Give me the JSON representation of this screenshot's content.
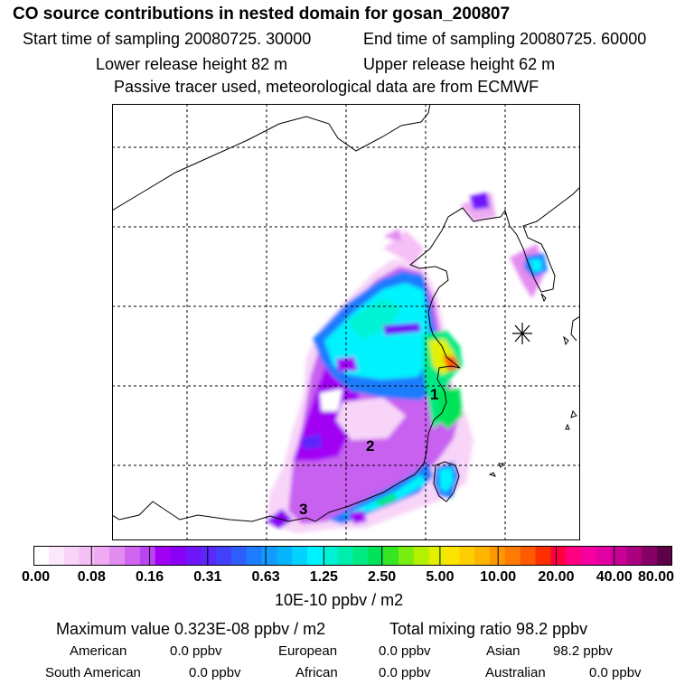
{
  "header": {
    "title": "CO  source contributions in nested domain for gosan_200807",
    "start_label": "Start time of sampling 20080725. 30000",
    "end_label": "End time of sampling 20080725. 60000",
    "lower_label": "Lower release height   82 m",
    "upper_label": "Upper release height   62 m",
    "info_line": "Passive tracer used, meteorological data are from ECMWF"
  },
  "map": {
    "markers": [
      {
        "label": "1"
      },
      {
        "label": "2"
      },
      {
        "label": "3"
      }
    ],
    "receptor_symbol": "asterisk-receptor-icon",
    "gridlines": "dashed",
    "coastline_color": "#000000"
  },
  "colorbar": {
    "ticks": [
      "0.00",
      "0.08",
      "0.16",
      "0.31",
      "0.63",
      "1.25",
      "2.50",
      "5.00",
      "10.00",
      "20.00",
      "40.00",
      "80.00"
    ],
    "colors": [
      "#ffffff",
      "#fbe9fb",
      "#f8d4f8",
      "#f5c0f5",
      "#eeaaf2",
      "#e38cf0",
      "#d066f0",
      "#bb44f2",
      "#a200f4",
      "#8a00f6",
      "#7014fa",
      "#5a28fb",
      "#4240fc",
      "#2e5efc",
      "#1e7cfe",
      "#129afe",
      "#06b4fe",
      "#04d2fe",
      "#00f2fe",
      "#00f2d4",
      "#00eeac",
      "#00ea84",
      "#00e258",
      "#36e624",
      "#7aec10",
      "#b4f000",
      "#e2f000",
      "#fae400",
      "#fece00",
      "#ffb400",
      "#ff9800",
      "#ff7a00",
      "#ff5a00",
      "#ff3000",
      "#ff0040",
      "#ff0080",
      "#f600a0",
      "#e200a2",
      "#c80096",
      "#aa007e",
      "#860066",
      "#5e0046"
    ],
    "units": "10E-10 ppbv / m2"
  },
  "stats": {
    "max_text": "Maximum value  0.323E-08 ppbv / m2",
    "total_text": "Total mixing ratio       98.2 ppbv"
  },
  "regions": [
    {
      "name": "American",
      "value": "0.0 ppbv"
    },
    {
      "name": "European",
      "value": "0.0 ppbv"
    },
    {
      "name": "Asian",
      "value": "98.2 ppbv"
    },
    {
      "name": "South American",
      "value": "0.0 ppbv"
    },
    {
      "name": "African",
      "value": "0.0 ppbv"
    },
    {
      "name": "Australian",
      "value": "0.0 ppbv"
    }
  ]
}
